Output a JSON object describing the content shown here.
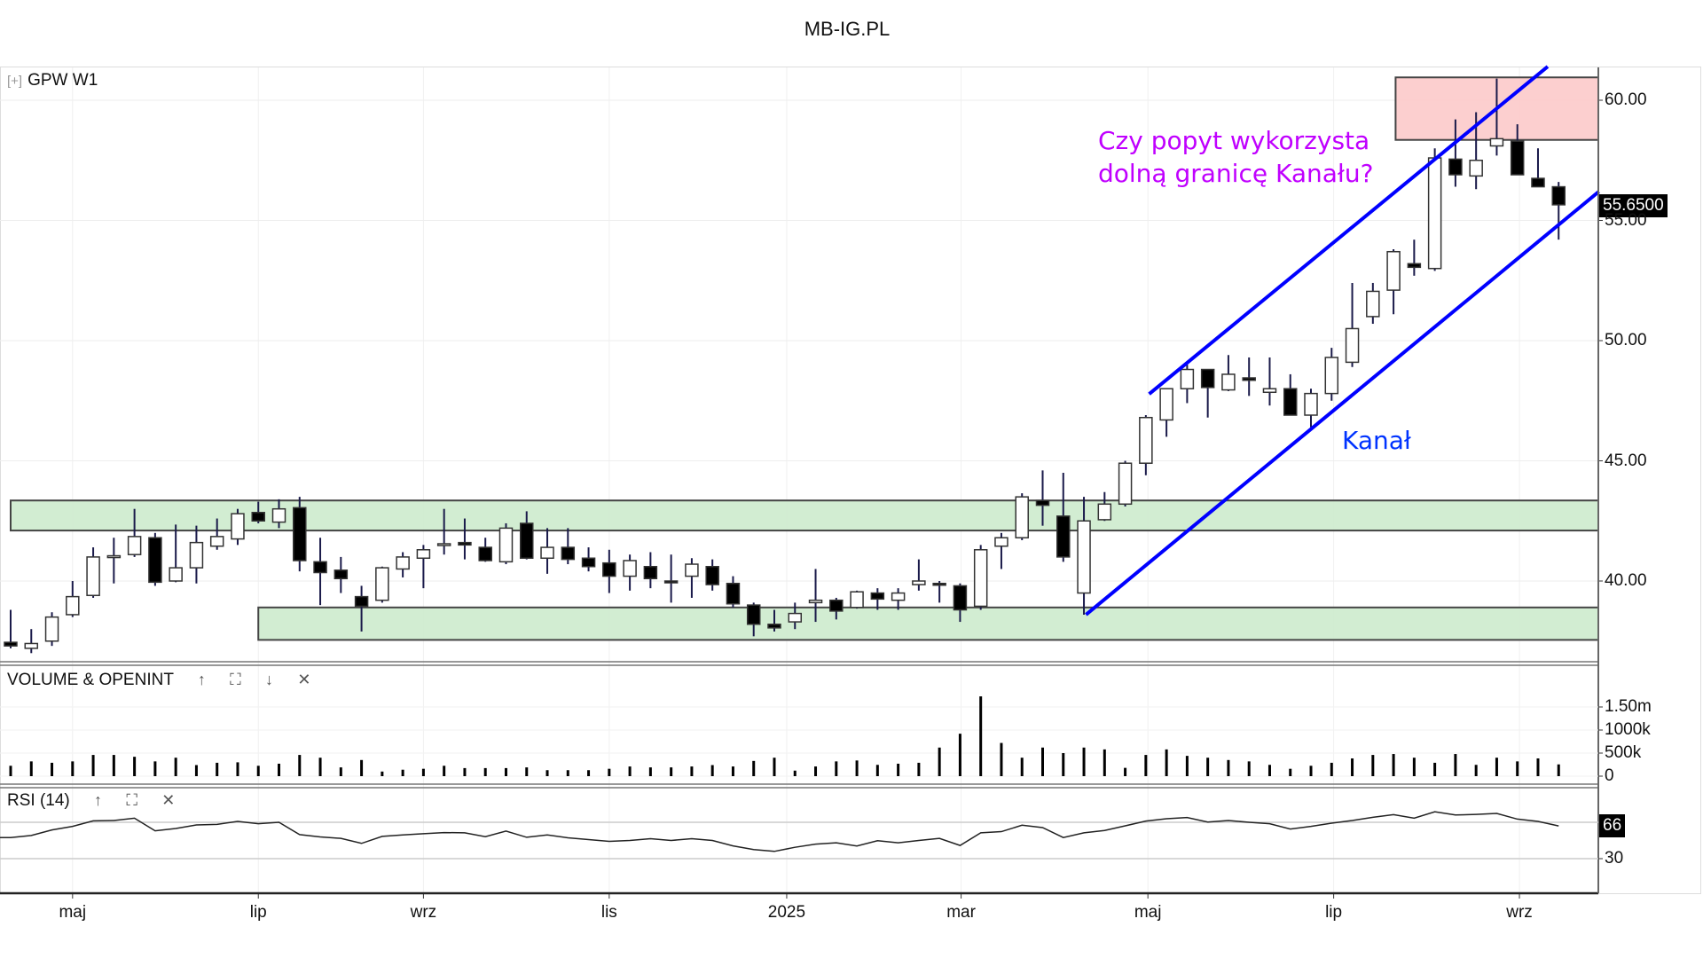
{
  "header": {
    "title": "MB-IG.PL"
  },
  "symbol": {
    "expand_icon": "[+]",
    "label": "GPW  W1"
  },
  "volume_pane": {
    "title": "VOLUME & OPENINT",
    "icons": {
      "up": "↑",
      "maximize": "⛶",
      "down": "↓",
      "close": "✕"
    }
  },
  "rsi_pane": {
    "title": "RSI (14)",
    "icons": {
      "up": "↑",
      "maximize": "⛶",
      "close": "✕"
    },
    "last_value": "66"
  },
  "annotations": {
    "question_line1": "Czy popyt wykorzysta",
    "question_line2": "dolną granicę Kanału?",
    "channel_label": "Kanał"
  },
  "colors": {
    "question": "#c000ff",
    "channel": "#0000ff",
    "support_zone": "#cdebcd",
    "resistance_zone": "#fccaca"
  },
  "chart_data": {
    "type": "candlestick",
    "title": "MB-IG.PL",
    "timeframe": "W1",
    "last_price": "55.6500",
    "price_axis": {
      "ticks": [
        "40.00",
        "45.00",
        "50.00",
        "55.00",
        "60.00"
      ],
      "tick_values": [
        40,
        45,
        50,
        55,
        60
      ],
      "range": [
        36.5,
        62.3
      ]
    },
    "x_ticks": [
      {
        "label": "maj",
        "index": 3.0
      },
      {
        "label": "lip",
        "index": 12.0
      },
      {
        "label": "wrz",
        "index": 20.0
      },
      {
        "label": "lis",
        "index": 29.0
      },
      {
        "label": "2025",
        "index": 37.6
      },
      {
        "label": "mar",
        "index": 46.05
      },
      {
        "label": "maj",
        "index": 55.1
      },
      {
        "label": "lip",
        "index": 64.1
      },
      {
        "label": "wrz",
        "index": 73.1
      }
    ],
    "ohlc": [
      [
        37.45,
        38.8,
        37.2,
        37.3
      ],
      [
        37.2,
        38.0,
        37.0,
        37.4
      ],
      [
        37.5,
        38.7,
        37.3,
        38.5
      ],
      [
        38.6,
        40.0,
        38.5,
        39.35
      ],
      [
        39.4,
        41.4,
        39.3,
        41.0
      ],
      [
        41.0,
        41.8,
        39.9,
        41.05
      ],
      [
        41.1,
        43.0,
        41.0,
        41.85
      ],
      [
        41.8,
        42.0,
        39.8,
        39.95
      ],
      [
        40.0,
        42.35,
        39.95,
        40.55
      ],
      [
        40.55,
        42.3,
        39.9,
        41.6
      ],
      [
        41.45,
        42.6,
        41.3,
        41.85
      ],
      [
        41.75,
        43.0,
        41.5,
        42.8
      ],
      [
        42.85,
        43.3,
        42.4,
        42.5
      ],
      [
        42.45,
        43.4,
        42.2,
        43.0
      ],
      [
        43.05,
        43.5,
        40.4,
        40.85
      ],
      [
        40.8,
        41.8,
        39.0,
        40.35
      ],
      [
        40.45,
        41.0,
        39.5,
        40.1
      ],
      [
        39.35,
        39.8,
        37.9,
        38.95
      ],
      [
        39.2,
        40.6,
        39.1,
        40.55
      ],
      [
        40.5,
        41.2,
        40.15,
        41.0
      ],
      [
        40.95,
        41.5,
        39.7,
        41.3
      ],
      [
        41.5,
        43.0,
        41.1,
        41.55
      ],
      [
        41.6,
        42.6,
        40.9,
        41.5
      ],
      [
        41.4,
        41.8,
        40.8,
        40.85
      ],
      [
        40.8,
        42.4,
        40.7,
        42.2
      ],
      [
        42.4,
        42.9,
        40.9,
        40.95
      ],
      [
        40.95,
        42.2,
        40.3,
        41.4
      ],
      [
        41.4,
        42.2,
        40.7,
        40.9
      ],
      [
        40.95,
        41.4,
        40.4,
        40.6
      ],
      [
        40.75,
        41.3,
        39.5,
        40.2
      ],
      [
        40.2,
        41.1,
        39.6,
        40.85
      ],
      [
        40.6,
        41.2,
        39.7,
        40.1
      ],
      [
        40.0,
        41.1,
        39.1,
        39.95
      ],
      [
        40.2,
        40.95,
        39.3,
        40.7
      ],
      [
        40.6,
        40.9,
        39.6,
        39.85
      ],
      [
        39.9,
        40.2,
        38.9,
        39.05
      ],
      [
        39.0,
        39.1,
        37.7,
        38.2
      ],
      [
        38.2,
        38.8,
        37.9,
        38.05
      ],
      [
        38.3,
        39.1,
        38.0,
        38.65
      ],
      [
        39.1,
        40.5,
        38.3,
        39.2
      ],
      [
        39.2,
        39.3,
        38.4,
        38.75
      ],
      [
        38.9,
        39.6,
        38.85,
        39.55
      ],
      [
        39.5,
        39.7,
        38.8,
        39.25
      ],
      [
        39.2,
        39.7,
        38.8,
        39.5
      ],
      [
        39.85,
        40.9,
        39.6,
        40.0
      ],
      [
        39.9,
        40.0,
        39.1,
        39.85
      ],
      [
        39.8,
        39.9,
        38.3,
        38.8
      ],
      [
        38.95,
        41.5,
        38.8,
        41.3
      ],
      [
        41.45,
        42.0,
        40.5,
        41.8
      ],
      [
        41.8,
        43.65,
        41.7,
        43.5
      ],
      [
        43.35,
        44.6,
        42.3,
        43.15
      ],
      [
        42.7,
        44.5,
        40.8,
        41.0
      ],
      [
        39.5,
        43.5,
        38.6,
        42.5
      ],
      [
        42.55,
        43.7,
        42.5,
        43.2
      ],
      [
        43.2,
        45.0,
        43.1,
        44.9
      ],
      [
        44.9,
        46.9,
        44.4,
        46.8
      ],
      [
        46.7,
        48.0,
        46.0,
        48.0
      ],
      [
        48.0,
        49.0,
        47.4,
        48.8
      ],
      [
        48.8,
        48.8,
        46.8,
        48.05
      ],
      [
        47.95,
        49.4,
        47.9,
        48.6
      ],
      [
        48.45,
        49.3,
        47.7,
        48.35
      ],
      [
        47.85,
        49.3,
        47.3,
        48.0
      ],
      [
        48.0,
        48.6,
        46.9,
        46.9
      ],
      [
        46.9,
        48.0,
        46.4,
        47.8
      ],
      [
        47.8,
        49.7,
        47.5,
        49.3
      ],
      [
        49.1,
        52.4,
        48.9,
        50.5
      ],
      [
        51.0,
        52.4,
        50.7,
        52.05
      ],
      [
        52.1,
        53.8,
        51.1,
        53.7
      ],
      [
        53.2,
        54.2,
        52.7,
        53.05
      ],
      [
        53.0,
        58.0,
        52.9,
        57.6
      ],
      [
        57.55,
        59.2,
        56.4,
        56.9
      ],
      [
        56.85,
        59.5,
        56.3,
        57.5
      ],
      [
        58.1,
        60.9,
        57.7,
        58.4
      ],
      [
        58.3,
        59.0,
        56.9,
        56.9
      ],
      [
        56.75,
        58.0,
        56.4,
        56.4
      ],
      [
        56.4,
        56.6,
        54.2,
        55.65
      ]
    ],
    "zones": [
      {
        "name": "support-zone-upper",
        "kind": "support",
        "from_index": 0,
        "price_top": 43.35,
        "price_bottom": 42.1
      },
      {
        "name": "support-zone-lower",
        "kind": "support",
        "from_index": 12,
        "price_top": 38.9,
        "price_bottom": 37.55
      },
      {
        "name": "resistance-zone",
        "kind": "resistance",
        "from_index": 67.1,
        "price_top": 60.95,
        "price_bottom": 58.35
      }
    ],
    "channel": {
      "upper": [
        [
          55.16,
          47.78
        ],
        [
          74.47,
          61.4
        ]
      ],
      "lower": [
        [
          52.1,
          38.6
        ],
        [
          76.95,
          56.2
        ]
      ]
    },
    "volume": {
      "ticks": [
        "0",
        "500k",
        "1000k",
        "1.50m"
      ],
      "tick_values": [
        0,
        500,
        1000,
        1500
      ],
      "unit": "thousands",
      "values": [
        225,
        320,
        290,
        320,
        460,
        460,
        420,
        320,
        400,
        240,
        290,
        300,
        225,
        270,
        460,
        400,
        190,
        350,
        100,
        140,
        160,
        225,
        175,
        175,
        175,
        190,
        130,
        130,
        130,
        160,
        210,
        190,
        190,
        210,
        240,
        210,
        330,
        400,
        120,
        210,
        320,
        340,
        245,
        270,
        290,
        620,
        920,
        1730,
        720,
        400,
        620,
        500,
        620,
        580,
        180,
        460,
        580,
        440,
        400,
        350,
        320,
        245,
        160,
        225,
        290,
        385,
        460,
        480,
        400,
        290,
        480,
        245,
        400,
        320,
        385,
        255
      ]
    },
    "rsi": {
      "period": 14,
      "ticks": [
        "30"
      ],
      "tick_values": [
        30
      ],
      "levels": [
        30,
        70
      ],
      "values": [
        53.2,
        55.5,
        61.6,
        65.5,
        71.6,
        72,
        74.5,
        60.6,
        63.2,
        67.1,
        67.7,
        71,
        68.4,
        70,
        56.5,
        53.9,
        52.3,
        46.8,
        54.5,
        56.1,
        57.4,
        58.7,
        58.4,
        54.2,
        60.3,
        53.5,
        56.1,
        52.9,
        51,
        49,
        50,
        52,
        50,
        52,
        50,
        44,
        40,
        38,
        42.5,
        46,
        47.4,
        43.9,
        49.7,
        47.4,
        50,
        52.3,
        44.5,
        58.4,
        59.7,
        66.8,
        64.2,
        53.2,
        58.4,
        61,
        66.1,
        71.3,
        73.9,
        75.2,
        70.3,
        71.9,
        70,
        68.4,
        62.6,
        65.5,
        69,
        71.9,
        75.5,
        78.4,
        74.5,
        81.6,
        78,
        78.7,
        79.7,
        73.5,
        71,
        66
      ]
    }
  }
}
